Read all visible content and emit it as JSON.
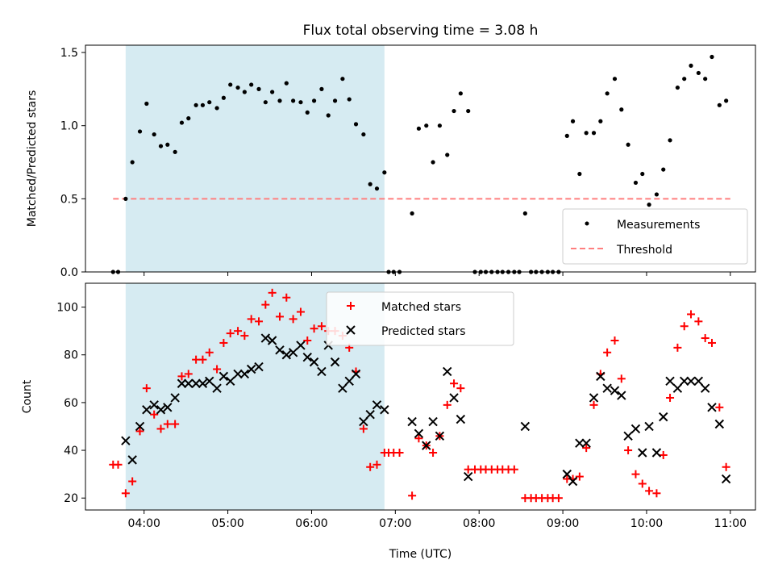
{
  "chart_data": [
    {
      "type": "scatter",
      "title": "Flux total observing time = 3.08 h",
      "xlabel": "",
      "ylabel": "Matched/Predicted stars",
      "xlim": [
        3.3,
        11.3
      ],
      "ylim": [
        0,
        1.55
      ],
      "yticks": [
        0.0,
        0.5,
        1.0,
        1.5
      ],
      "ytick_labels": [
        "0.0",
        "0.5",
        "1.0",
        "1.5"
      ],
      "xticks": [
        4,
        5,
        6,
        7,
        8,
        9,
        10,
        11
      ],
      "shaded_interval": [
        3.78,
        6.87
      ],
      "legend": [
        "Measurements",
        "Threshold"
      ],
      "threshold": {
        "value": 0.5,
        "x_start": 3.63,
        "x_end": 11.0,
        "color": "#ff7f7f"
      },
      "series": [
        {
          "name": "Measurements",
          "color": "#000000",
          "points": [
            [
              3.63,
              0
            ],
            [
              3.69,
              0
            ],
            [
              3.78,
              0.5
            ],
            [
              3.86,
              0.75
            ],
            [
              3.95,
              0.96
            ],
            [
              4.03,
              1.15
            ],
            [
              4.12,
              0.94
            ],
            [
              4.2,
              0.86
            ],
            [
              4.28,
              0.87
            ],
            [
              4.37,
              0.82
            ],
            [
              4.45,
              1.02
            ],
            [
              4.53,
              1.05
            ],
            [
              4.62,
              1.14
            ],
            [
              4.7,
              1.14
            ],
            [
              4.78,
              1.16
            ],
            [
              4.87,
              1.12
            ],
            [
              4.95,
              1.19
            ],
            [
              5.03,
              1.28
            ],
            [
              5.12,
              1.26
            ],
            [
              5.2,
              1.23
            ],
            [
              5.28,
              1.28
            ],
            [
              5.37,
              1.25
            ],
            [
              5.45,
              1.16
            ],
            [
              5.53,
              1.23
            ],
            [
              5.62,
              1.17
            ],
            [
              5.7,
              1.29
            ],
            [
              5.78,
              1.17
            ],
            [
              5.87,
              1.16
            ],
            [
              5.95,
              1.09
            ],
            [
              6.03,
              1.17
            ],
            [
              6.12,
              1.25
            ],
            [
              6.2,
              1.07
            ],
            [
              6.28,
              1.17
            ],
            [
              6.37,
              1.32
            ],
            [
              6.45,
              1.18
            ],
            [
              6.53,
              1.01
            ],
            [
              6.62,
              0.94
            ],
            [
              6.7,
              0.6
            ],
            [
              6.78,
              0.57
            ],
            [
              6.87,
              0.68
            ],
            [
              6.92,
              0
            ],
            [
              6.98,
              0
            ],
            [
              7.05,
              0
            ],
            [
              7.2,
              0.4
            ],
            [
              7.28,
              0.98
            ],
            [
              7.37,
              1.0
            ],
            [
              7.45,
              0.75
            ],
            [
              7.53,
              1.0
            ],
            [
              7.62,
              0.8
            ],
            [
              7.7,
              1.1
            ],
            [
              7.78,
              1.22
            ],
            [
              7.87,
              1.1
            ],
            [
              7.95,
              0
            ],
            [
              8.02,
              0
            ],
            [
              8.08,
              0
            ],
            [
              8.15,
              0
            ],
            [
              8.22,
              0
            ],
            [
              8.28,
              0
            ],
            [
              8.35,
              0
            ],
            [
              8.42,
              0
            ],
            [
              8.48,
              0
            ],
            [
              8.55,
              0.4
            ],
            [
              8.62,
              0
            ],
            [
              8.68,
              0
            ],
            [
              8.75,
              0
            ],
            [
              8.82,
              0
            ],
            [
              8.88,
              0
            ],
            [
              8.95,
              0
            ],
            [
              9.05,
              0.93
            ],
            [
              9.12,
              1.03
            ],
            [
              9.2,
              0.67
            ],
            [
              9.28,
              0.95
            ],
            [
              9.37,
              0.95
            ],
            [
              9.45,
              1.03
            ],
            [
              9.53,
              1.22
            ],
            [
              9.62,
              1.32
            ],
            [
              9.7,
              1.11
            ],
            [
              9.78,
              0.87
            ],
            [
              9.87,
              0.61
            ],
            [
              9.95,
              0.67
            ],
            [
              10.03,
              0.46
            ],
            [
              10.12,
              0.53
            ],
            [
              10.2,
              0.7
            ],
            [
              10.28,
              0.9
            ],
            [
              10.37,
              1.26
            ],
            [
              10.45,
              1.32
            ],
            [
              10.53,
              1.41
            ],
            [
              10.62,
              1.36
            ],
            [
              10.7,
              1.32
            ],
            [
              10.78,
              1.47
            ],
            [
              10.87,
              1.14
            ],
            [
              10.95,
              1.17
            ]
          ]
        }
      ]
    },
    {
      "type": "scatter",
      "title": "",
      "xlabel": "Time (UTC)",
      "ylabel": "Count",
      "xlim": [
        3.3,
        11.3
      ],
      "ylim": [
        15,
        110
      ],
      "yticks": [
        20,
        40,
        60,
        80,
        100
      ],
      "ytick_labels": [
        "20",
        "40",
        "60",
        "80",
        "100"
      ],
      "xticks": [
        4,
        5,
        6,
        7,
        8,
        9,
        10,
        11
      ],
      "xtick_labels": [
        "04:00",
        "05:00",
        "06:00",
        "07:00",
        "08:00",
        "09:00",
        "10:00",
        "11:00"
      ],
      "shaded_interval": [
        3.78,
        6.87
      ],
      "legend": [
        "Matched stars",
        "Predicted stars"
      ],
      "series": [
        {
          "name": "Matched stars",
          "marker": "+",
          "color": "#ff0000",
          "points": [
            [
              3.63,
              34
            ],
            [
              3.69,
              34
            ],
            [
              3.78,
              22
            ],
            [
              3.86,
              27
            ],
            [
              3.95,
              48
            ],
            [
              4.03,
              66
            ],
            [
              4.12,
              55
            ],
            [
              4.2,
              49
            ],
            [
              4.28,
              51
            ],
            [
              4.37,
              51
            ],
            [
              4.45,
              71
            ],
            [
              4.53,
              72
            ],
            [
              4.62,
              78
            ],
            [
              4.7,
              78
            ],
            [
              4.78,
              81
            ],
            [
              4.87,
              74
            ],
            [
              4.95,
              85
            ],
            [
              5.03,
              89
            ],
            [
              5.12,
              90
            ],
            [
              5.2,
              88
            ],
            [
              5.28,
              95
            ],
            [
              5.37,
              94
            ],
            [
              5.45,
              101
            ],
            [
              5.53,
              106
            ],
            [
              5.62,
              96
            ],
            [
              5.7,
              104
            ],
            [
              5.78,
              95
            ],
            [
              5.87,
              98
            ],
            [
              5.95,
              86
            ],
            [
              6.03,
              91
            ],
            [
              6.12,
              92
            ],
            [
              6.2,
              90
            ],
            [
              6.28,
              90
            ],
            [
              6.37,
              88
            ],
            [
              6.45,
              83
            ],
            [
              6.53,
              73
            ],
            [
              6.62,
              49
            ],
            [
              6.7,
              33
            ],
            [
              6.78,
              34
            ],
            [
              6.87,
              39
            ],
            [
              6.92,
              39
            ],
            [
              6.98,
              39
            ],
            [
              7.05,
              39
            ],
            [
              7.2,
              21
            ],
            [
              7.28,
              45
            ],
            [
              7.37,
              42
            ],
            [
              7.45,
              39
            ],
            [
              7.53,
              46
            ],
            [
              7.62,
              59
            ],
            [
              7.7,
              68
            ],
            [
              7.78,
              66
            ],
            [
              7.87,
              32
            ],
            [
              7.95,
              32
            ],
            [
              8.02,
              32
            ],
            [
              8.08,
              32
            ],
            [
              8.15,
              32
            ],
            [
              8.22,
              32
            ],
            [
              8.28,
              32
            ],
            [
              8.35,
              32
            ],
            [
              8.42,
              32
            ],
            [
              8.55,
              20
            ],
            [
              8.62,
              20
            ],
            [
              8.68,
              20
            ],
            [
              8.75,
              20
            ],
            [
              8.82,
              20
            ],
            [
              8.88,
              20
            ],
            [
              8.95,
              20
            ],
            [
              9.05,
              28
            ],
            [
              9.12,
              28
            ],
            [
              9.2,
              29
            ],
            [
              9.28,
              41
            ],
            [
              9.37,
              59
            ],
            [
              9.45,
              72
            ],
            [
              9.53,
              81
            ],
            [
              9.62,
              86
            ],
            [
              9.7,
              70
            ],
            [
              9.78,
              40
            ],
            [
              9.87,
              30
            ],
            [
              9.95,
              26
            ],
            [
              10.03,
              23
            ],
            [
              10.12,
              22
            ],
            [
              10.2,
              38
            ],
            [
              10.28,
              62
            ],
            [
              10.37,
              83
            ],
            [
              10.45,
              92
            ],
            [
              10.53,
              97
            ],
            [
              10.62,
              94
            ],
            [
              10.7,
              87
            ],
            [
              10.78,
              85
            ],
            [
              10.87,
              58
            ],
            [
              10.95,
              33
            ]
          ]
        },
        {
          "name": "Predicted stars",
          "marker": "x",
          "color": "#000000",
          "points": [
            [
              3.78,
              44
            ],
            [
              3.86,
              36
            ],
            [
              3.95,
              50
            ],
            [
              4.03,
              57
            ],
            [
              4.12,
              59
            ],
            [
              4.2,
              57
            ],
            [
              4.28,
              58
            ],
            [
              4.37,
              62
            ],
            [
              4.45,
              68
            ],
            [
              4.53,
              68
            ],
            [
              4.62,
              68
            ],
            [
              4.7,
              68
            ],
            [
              4.78,
              69
            ],
            [
              4.87,
              66
            ],
            [
              4.95,
              71
            ],
            [
              5.03,
              69
            ],
            [
              5.12,
              72
            ],
            [
              5.2,
              72
            ],
            [
              5.28,
              74
            ],
            [
              5.37,
              75
            ],
            [
              5.45,
              87
            ],
            [
              5.53,
              86
            ],
            [
              5.62,
              82
            ],
            [
              5.7,
              80
            ],
            [
              5.78,
              81
            ],
            [
              5.87,
              84
            ],
            [
              5.95,
              79
            ],
            [
              6.03,
              77
            ],
            [
              6.12,
              73
            ],
            [
              6.2,
              84
            ],
            [
              6.28,
              77
            ],
            [
              6.37,
              66
            ],
            [
              6.45,
              69
            ],
            [
              6.53,
              72
            ],
            [
              6.62,
              52
            ],
            [
              6.7,
              55
            ],
            [
              6.78,
              59
            ],
            [
              6.87,
              57
            ],
            [
              7.2,
              52
            ],
            [
              7.28,
              47
            ],
            [
              7.37,
              42
            ],
            [
              7.45,
              52
            ],
            [
              7.53,
              46
            ],
            [
              7.62,
              73
            ],
            [
              7.7,
              62
            ],
            [
              7.78,
              53
            ],
            [
              7.87,
              29
            ],
            [
              8.55,
              50
            ],
            [
              9.05,
              30
            ],
            [
              9.12,
              27
            ],
            [
              9.2,
              43
            ],
            [
              9.28,
              43
            ],
            [
              9.37,
              62
            ],
            [
              9.45,
              71
            ],
            [
              9.53,
              66
            ],
            [
              9.62,
              65
            ],
            [
              9.7,
              63
            ],
            [
              9.78,
              46
            ],
            [
              9.87,
              49
            ],
            [
              9.95,
              39
            ],
            [
              10.03,
              50
            ],
            [
              10.12,
              39
            ],
            [
              10.2,
              54
            ],
            [
              10.28,
              69
            ],
            [
              10.37,
              66
            ],
            [
              10.45,
              69
            ],
            [
              10.53,
              69
            ],
            [
              10.62,
              69
            ],
            [
              10.7,
              66
            ],
            [
              10.78,
              58
            ],
            [
              10.87,
              51
            ],
            [
              10.95,
              28
            ]
          ]
        }
      ]
    }
  ]
}
